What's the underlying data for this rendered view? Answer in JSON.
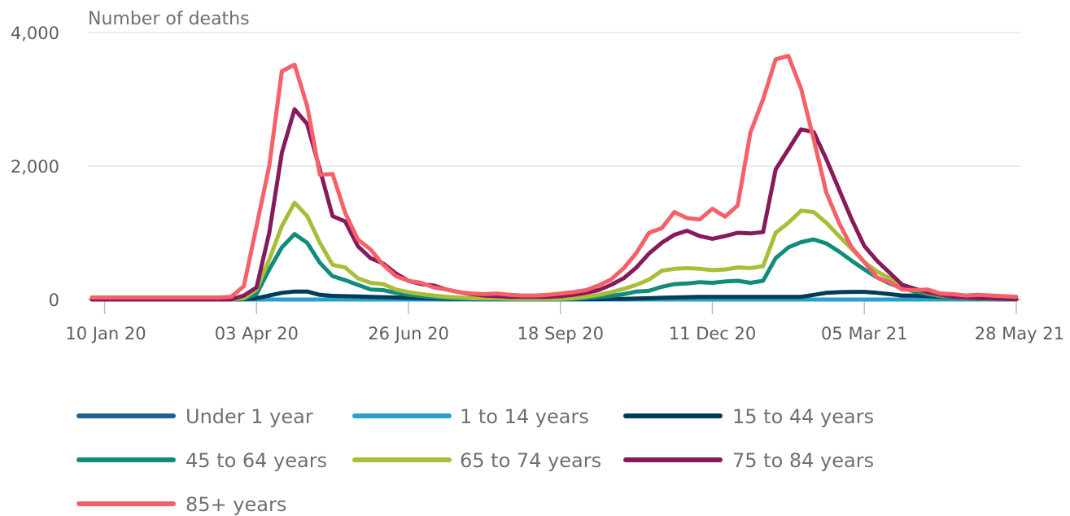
{
  "chart_data": {
    "type": "line",
    "title": "",
    "ylabel": "Number of deaths",
    "xlabel": "",
    "ylim": [
      0,
      4000
    ],
    "y_ticks": [
      0,
      2000,
      4000
    ],
    "y_tick_labels": [
      "0",
      "2,000",
      "4,000"
    ],
    "x_tick_labels": [
      "10 Jan 20",
      "03 Apr 20",
      "26 Jun 20",
      "18 Sep 20",
      "11 Dec 20",
      "05 Mar 21",
      "28 May 21"
    ],
    "x_tick_weeks": [
      1,
      13,
      25,
      37,
      49,
      61,
      73
    ],
    "grid": true,
    "legend_position": "bottom",
    "series": [
      {
        "name": "Under 1 year",
        "color": "#206095",
        "values": [
          0,
          0,
          0,
          0,
          0,
          0,
          0,
          0,
          0,
          0,
          0,
          0,
          0,
          0,
          0,
          0,
          0,
          0,
          0,
          0,
          0,
          0,
          0,
          0,
          0,
          0,
          0,
          0,
          0,
          0,
          0,
          0,
          0,
          0,
          0,
          0,
          0,
          0,
          0,
          0,
          0,
          0,
          0,
          0,
          0,
          0,
          0,
          0,
          0,
          0,
          0,
          0,
          0,
          0,
          0,
          0,
          0,
          0,
          0,
          0,
          0,
          0,
          0,
          0,
          0,
          0,
          0,
          0,
          0,
          0,
          0,
          0,
          0,
          0
        ]
      },
      {
        "name": "1 to 14 years",
        "color": "#27a0cc",
        "values": [
          0,
          0,
          0,
          0,
          0,
          0,
          0,
          0,
          0,
          0,
          0,
          0,
          0,
          0,
          0,
          0,
          0,
          0,
          0,
          0,
          0,
          0,
          0,
          0,
          0,
          0,
          0,
          0,
          0,
          0,
          0,
          0,
          0,
          0,
          0,
          0,
          0,
          0,
          0,
          0,
          0,
          0,
          0,
          0,
          0,
          0,
          0,
          0,
          0,
          0,
          0,
          0,
          0,
          0,
          0,
          0,
          0,
          0,
          0,
          0,
          0,
          0,
          0,
          0,
          0,
          0,
          0,
          0,
          0,
          0,
          0,
          0,
          0,
          0
        ]
      },
      {
        "name": "15 to 44 years",
        "color": "#003c57",
        "values": [
          0,
          0,
          0,
          0,
          0,
          0,
          0,
          0,
          0,
          0,
          0,
          0,
          5,
          20,
          60,
          100,
          120,
          120,
          70,
          55,
          50,
          45,
          40,
          35,
          30,
          25,
          20,
          15,
          10,
          8,
          5,
          5,
          5,
          5,
          5,
          5,
          5,
          5,
          5,
          5,
          5,
          8,
          10,
          15,
          20,
          25,
          30,
          35,
          40,
          40,
          40,
          40,
          40,
          40,
          40,
          40,
          40,
          70,
          100,
          110,
          115,
          115,
          100,
          80,
          60,
          60,
          50,
          40,
          30,
          20,
          10,
          5,
          5,
          5
        ]
      },
      {
        "name": "45 to 64 years",
        "color": "#118c7b",
        "values": [
          0,
          0,
          0,
          0,
          0,
          0,
          0,
          0,
          0,
          0,
          0,
          0,
          10,
          80,
          450,
          780,
          980,
          850,
          550,
          350,
          290,
          220,
          150,
          140,
          100,
          70,
          50,
          30,
          20,
          15,
          10,
          10,
          10,
          10,
          5,
          5,
          5,
          5,
          10,
          20,
          35,
          55,
          80,
          120,
          130,
          190,
          230,
          240,
          260,
          250,
          270,
          280,
          250,
          280,
          620,
          780,
          860,
          900,
          840,
          720,
          580,
          450,
          330,
          240,
          170,
          120,
          80,
          50,
          30,
          20,
          10,
          5,
          5,
          5
        ]
      },
      {
        "name": "65 to 74 years",
        "color": "#a8bd3a",
        "values": [
          0,
          0,
          0,
          0,
          0,
          0,
          0,
          0,
          0,
          0,
          0,
          0,
          20,
          150,
          600,
          1100,
          1450,
          1250,
          850,
          520,
          480,
          320,
          250,
          230,
          150,
          110,
          80,
          60,
          40,
          30,
          20,
          15,
          15,
          10,
          10,
          10,
          10,
          10,
          20,
          40,
          70,
          110,
          160,
          220,
          300,
          430,
          460,
          470,
          460,
          440,
          450,
          480,
          470,
          500,
          1000,
          1150,
          1330,
          1310,
          1150,
          950,
          760,
          560,
          420,
          320,
          220,
          160,
          100,
          60,
          40,
          25,
          15,
          10,
          8,
          5
        ]
      },
      {
        "name": "75 to 84 years",
        "color": "#871a5b",
        "values": [
          0,
          0,
          0,
          0,
          0,
          0,
          0,
          0,
          0,
          0,
          0,
          0,
          60,
          180,
          1000,
          2200,
          2850,
          2630,
          1950,
          1250,
          1170,
          800,
          620,
          540,
          390,
          280,
          230,
          210,
          150,
          110,
          80,
          60,
          50,
          40,
          40,
          40,
          40,
          50,
          70,
          100,
          140,
          220,
          320,
          480,
          690,
          850,
          970,
          1030,
          950,
          910,
          950,
          1000,
          990,
          1010,
          1950,
          2250,
          2550,
          2510,
          2100,
          1650,
          1200,
          800,
          580,
          400,
          220,
          160,
          110,
          70,
          40,
          30,
          20,
          15,
          10,
          5
        ]
      },
      {
        "name": "85+ years",
        "color": "#f66068",
        "values": [
          30,
          30,
          30,
          30,
          30,
          30,
          30,
          30,
          30,
          30,
          30,
          40,
          200,
          1100,
          2000,
          3420,
          3520,
          2900,
          1870,
          1880,
          1300,
          900,
          750,
          520,
          350,
          280,
          250,
          180,
          150,
          110,
          90,
          80,
          90,
          70,
          60,
          60,
          70,
          90,
          110,
          140,
          210,
          300,
          470,
          700,
          1000,
          1070,
          1310,
          1220,
          1200,
          1360,
          1240,
          1410,
          2500,
          3000,
          3600,
          3650,
          3160,
          2400,
          1600,
          1150,
          780,
          560,
          330,
          260,
          150,
          140,
          150,
          90,
          80,
          60,
          70,
          60,
          50,
          40
        ]
      }
    ]
  }
}
